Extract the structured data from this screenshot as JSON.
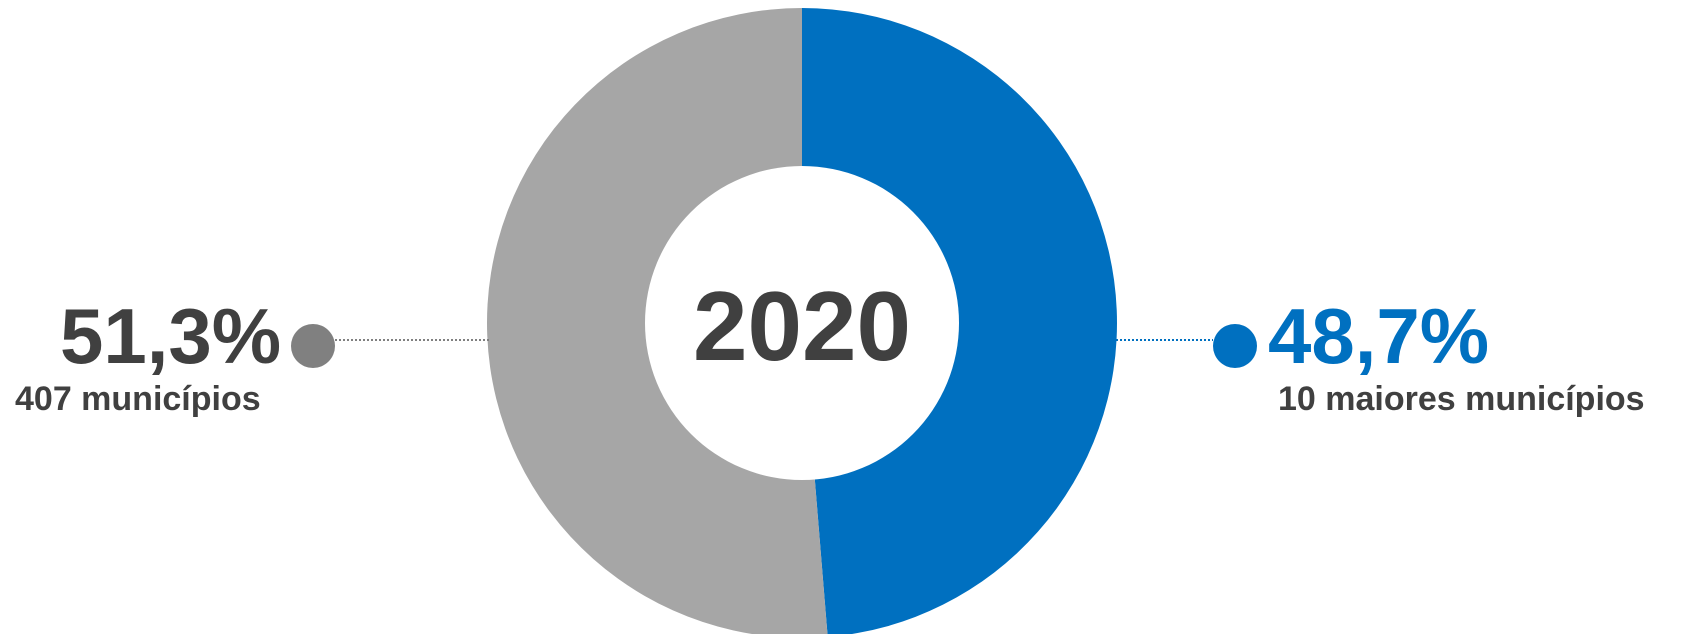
{
  "chart_data": {
    "type": "pie",
    "title": "2020",
    "slices": [
      {
        "label": "10 maiores municípios",
        "value": 48.7,
        "value_label": "48,7%",
        "color": "#0070C0"
      },
      {
        "label": "407 municípios",
        "value": 51.3,
        "value_label": "51,3%",
        "color": "#A6A6A6"
      }
    ],
    "marker_colors": {
      "left": "#808080",
      "right": "#0070C0"
    },
    "text_colors": {
      "left_pct": "#404040",
      "right_pct": "#0070C0",
      "sub": "#404040"
    }
  }
}
